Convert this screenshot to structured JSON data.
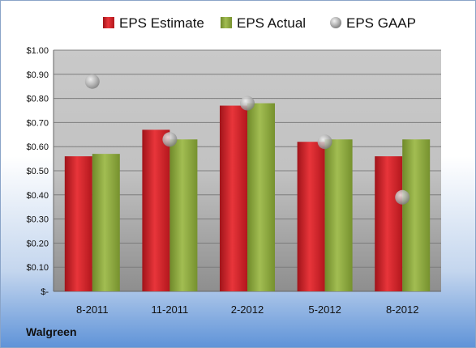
{
  "chart_data": {
    "type": "bar",
    "categories": [
      "8-2011",
      "11-2011",
      "2-2012",
      "5-2012",
      "8-2012"
    ],
    "series": [
      {
        "name": "EPS Estimate",
        "type": "bar",
        "color": "#cc1f24",
        "values": [
          0.56,
          0.67,
          0.77,
          0.62,
          0.56
        ]
      },
      {
        "name": "EPS Actual",
        "type": "bar",
        "color": "#8aa63a",
        "values": [
          0.57,
          0.63,
          0.78,
          0.63,
          0.63
        ]
      },
      {
        "name": "EPS GAAP",
        "type": "scatter",
        "color": "#b8b8b8",
        "values": [
          0.87,
          0.63,
          0.78,
          0.62,
          0.39
        ]
      }
    ],
    "ylim": [
      0,
      1.0
    ],
    "yticks": [
      {
        "value": 0,
        "label": "$-"
      },
      {
        "value": 0.1,
        "label": "$0.10"
      },
      {
        "value": 0.2,
        "label": "$0.20"
      },
      {
        "value": 0.3,
        "label": "$0.30"
      },
      {
        "value": 0.4,
        "label": "$0.40"
      },
      {
        "value": 0.5,
        "label": "$0.50"
      },
      {
        "value": 0.6,
        "label": "$0.60"
      },
      {
        "value": 0.7,
        "label": "$0.70"
      },
      {
        "value": 0.8,
        "label": "$0.80"
      },
      {
        "value": 0.9,
        "label": "$0.90"
      },
      {
        "value": 1.0,
        "label": "$1.00"
      }
    ],
    "grid": true,
    "legend_position": "top",
    "company": "Walgreen"
  }
}
